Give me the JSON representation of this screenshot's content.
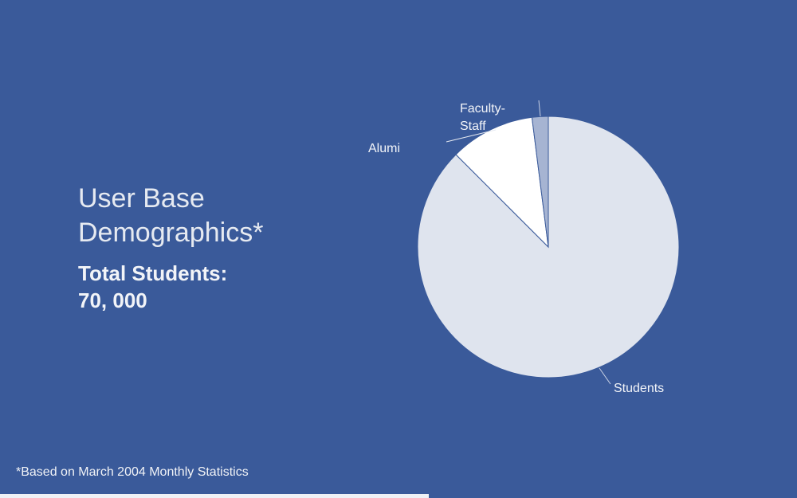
{
  "heading": {
    "line1": "User Base",
    "line2": "Demographics*"
  },
  "subheading": {
    "line1": "Total Students:",
    "line2": "70, 000"
  },
  "footnote": "*Based on March 2004 Monthly Statistics",
  "chart_data": {
    "type": "pie",
    "title": "",
    "start_angle_deg": 0,
    "direction": "clockwise",
    "slices": [
      {
        "label": "Students",
        "value": 87.5,
        "color": "#dfe4ee"
      },
      {
        "label": "Alumi",
        "value": 10.5,
        "color": "#ffffff"
      },
      {
        "label": "Faculty-Staff",
        "value": 2.0,
        "color": "#a6b4d2"
      }
    ],
    "legend": "none",
    "slice_edge_color": "#3a5a9a"
  }
}
